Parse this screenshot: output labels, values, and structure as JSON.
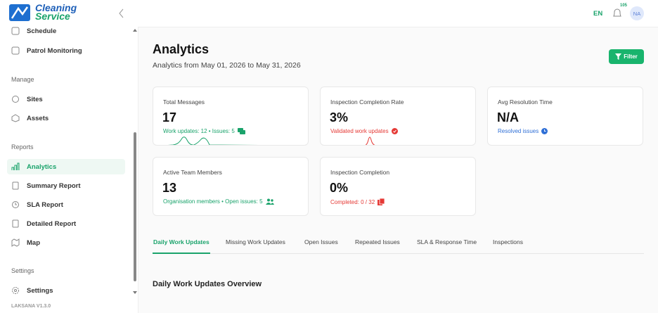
{
  "brand": {
    "line1": "Cleaning",
    "line2": "Service"
  },
  "topbar": {
    "language": "EN",
    "notification_count": "105",
    "avatar": "NA"
  },
  "sidebar": {
    "items_top": [
      "Schedule",
      "Patrol Monitoring"
    ],
    "manage": {
      "label": "Manage",
      "items": [
        "Sites",
        "Assets"
      ]
    },
    "reports": {
      "label": "Reports",
      "items": [
        "Analytics",
        "Summary Report",
        "SLA Report",
        "Detailed Report",
        "Map"
      ]
    },
    "settings": {
      "label": "Settings",
      "items": [
        "Settings"
      ]
    },
    "version": "LAKSANA V1.3.0"
  },
  "header": {
    "title": "Analytics",
    "subtitle": "Analytics from May 01, 2026 to May 31, 2026",
    "filter_button": "Filter"
  },
  "cards": [
    {
      "title": "Total Messages",
      "value": "17",
      "detail": "Work updates: 12 • Issues: 5"
    },
    {
      "title": "Inspection Completion Rate",
      "value": "3%",
      "detail": "Validated work updates"
    },
    {
      "title": "Avg Resolution Time",
      "value": "N/A",
      "detail": "Resolved issues"
    },
    {
      "title": "Active Team Members",
      "value": "13",
      "detail": "Organisation members • Open issues: 5"
    },
    {
      "title": "Inspection Completion",
      "value": "0%",
      "detail": "Completed: 0 / 32"
    }
  ],
  "tabs": [
    "Daily Work Updates",
    "Missing Work Updates",
    "Open Issues",
    "Repeated Issues",
    "SLA & Response Time",
    "Inspections"
  ],
  "section_title": "Daily Work Updates Overview"
}
